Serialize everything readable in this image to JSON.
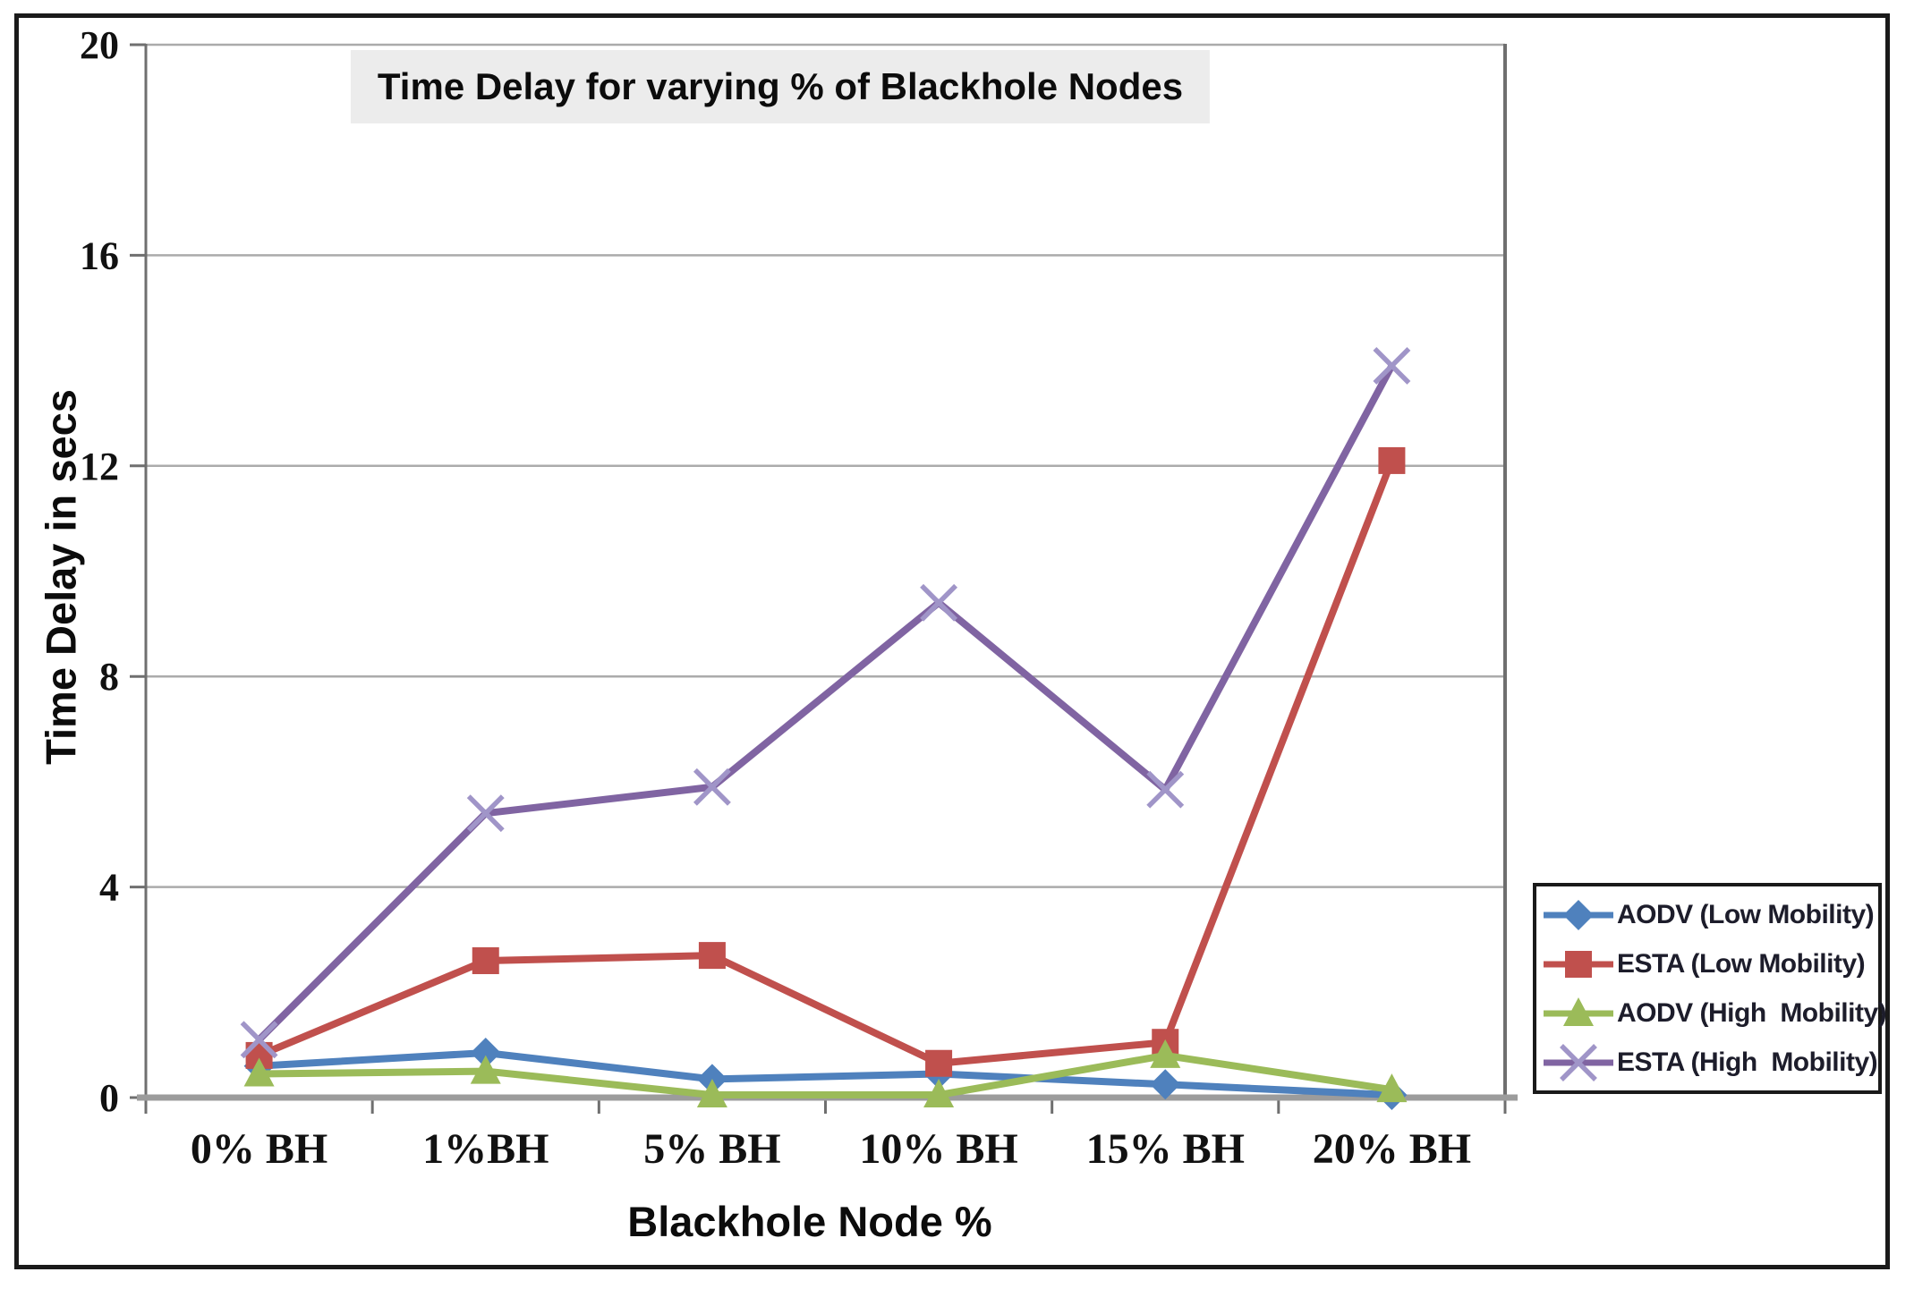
{
  "figure": {
    "title": "Time Delay for varying % of Blackhole Nodes"
  },
  "chart_data": {
    "type": "line",
    "title": "Time Delay for varying % of Blackhole Nodes",
    "xlabel": "Blackhole Node %",
    "ylabel": "Time Delay in secs",
    "categories": [
      "0% BH",
      "1%BH",
      "5% BH",
      "10% BH",
      "15% BH",
      "20% BH"
    ],
    "series": [
      {
        "name": "AODV (Low Mobility)",
        "color": "#4F81BD",
        "marker": "diamond",
        "values": [
          0.6,
          0.85,
          0.35,
          0.45,
          0.25,
          0.05
        ]
      },
      {
        "name": "ESTA (Low Mobility)",
        "color": "#C0504D",
        "marker": "square",
        "values": [
          0.8,
          2.6,
          2.7,
          0.65,
          1.05,
          12.1
        ]
      },
      {
        "name": "AODV (High  Mobility)",
        "color": "#9BBB59",
        "marker": "triangle",
        "values": [
          0.45,
          0.5,
          0.05,
          0.05,
          0.8,
          0.15
        ]
      },
      {
        "name": "ESTA (High  Mobility)",
        "color": "#8064A2",
        "marker": "x",
        "values": [
          1.1,
          5.4,
          5.9,
          9.4,
          5.85,
          13.9
        ]
      }
    ],
    "ylim": [
      0,
      20
    ],
    "yticks": [
      0,
      4,
      8,
      12,
      16,
      20
    ],
    "grid": true,
    "legend_position": "right",
    "styles": {
      "grid_color": "#ababab",
      "axis_color": "#6f6f6f",
      "baseline_color": "#9c9c9c",
      "tick_text_color": "#111111",
      "x_marker_color": "#a095c8"
    }
  }
}
